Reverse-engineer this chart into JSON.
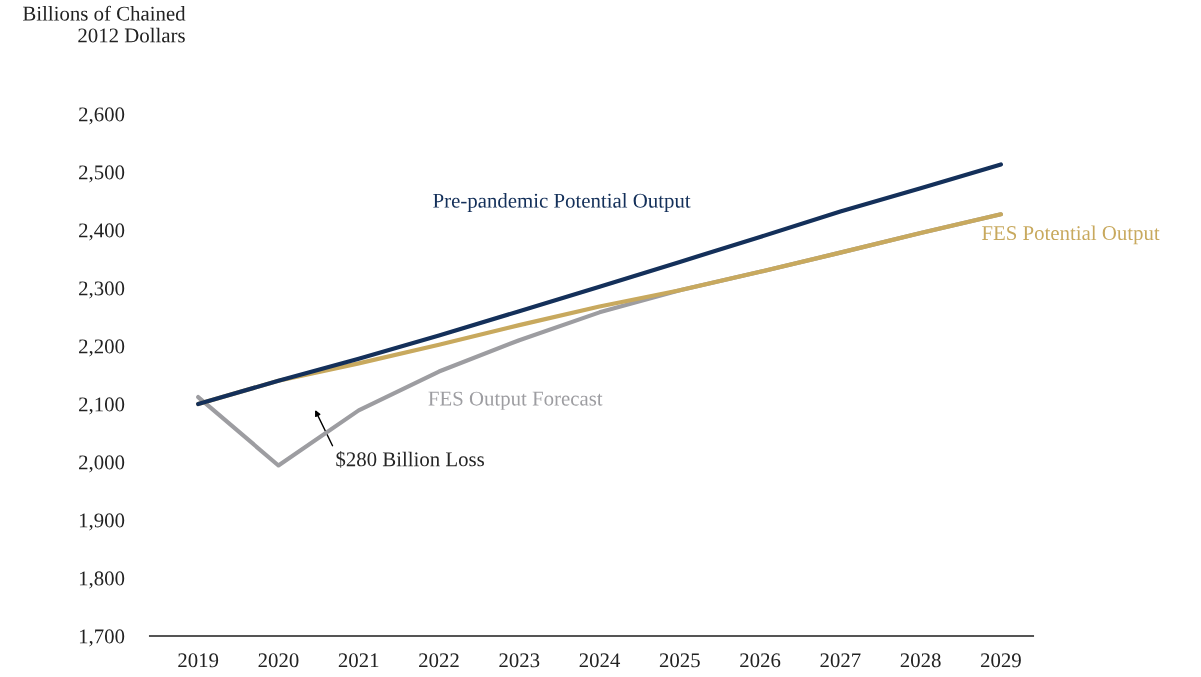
{
  "chart_data": {
    "type": "line",
    "ylabel": "Billions of Chained\n2012 Dollars",
    "x": [
      2019,
      2020,
      2021,
      2022,
      2023,
      2024,
      2025,
      2026,
      2027,
      2028,
      2029
    ],
    "series": [
      {
        "name": "Pre-pandemic Potential Output",
        "color": "#14305a",
        "values": [
          2100,
          2140,
          2178,
          2218,
          2260,
          2302,
          2345,
          2388,
          2432,
          2472,
          2513
        ]
      },
      {
        "name": "FES Potential Output",
        "color": "#c8a95e",
        "values": [
          2100,
          2140,
          2170,
          2202,
          2236,
          2268,
          2296,
          2328,
          2361,
          2395,
          2427
        ]
      },
      {
        "name": "FES Output Forecast",
        "color": "#9d9da1",
        "values": [
          2112,
          1994,
          2089,
          2156,
          2210,
          2258,
          2296,
          2328,
          2361,
          2395,
          2427
        ]
      }
    ],
    "annotations": [
      "$280 Billion Loss"
    ],
    "xlim": [
      2018.4,
      2029.4
    ],
    "xticks": [
      2019,
      2020,
      2021,
      2022,
      2023,
      2024,
      2025,
      2026,
      2027,
      2028,
      2029
    ],
    "ylim": [
      1700,
      2600
    ],
    "yticks": [
      {
        "value": 1700,
        "label": "1,700"
      },
      {
        "value": 1800,
        "label": "1,800"
      },
      {
        "value": 1900,
        "label": "1,900"
      },
      {
        "value": 2000,
        "label": "2,000"
      },
      {
        "value": 2100,
        "label": "2,100"
      },
      {
        "value": 2200,
        "label": "2,200"
      },
      {
        "value": 2300,
        "label": "2,300"
      },
      {
        "value": 2400,
        "label": "2,400"
      },
      {
        "value": 2500,
        "label": "2,500"
      },
      {
        "value": 2600,
        "label": "2,600"
      }
    ],
    "grid": false,
    "marker": "none",
    "line_style": "solid"
  }
}
